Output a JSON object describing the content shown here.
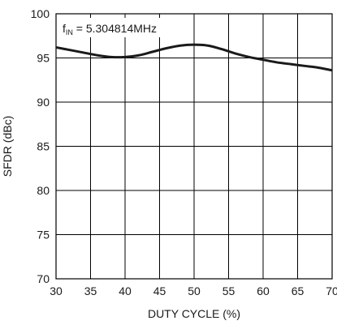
{
  "chart_data": {
    "type": "line",
    "title": "",
    "xlabel": "DUTY CYCLE (%)",
    "ylabel": "SFDR (dBc)",
    "xlim": [
      30,
      70
    ],
    "ylim": [
      70,
      100
    ],
    "xticks": [
      30,
      35,
      40,
      45,
      50,
      55,
      60,
      65,
      70
    ],
    "yticks": [
      70,
      75,
      80,
      85,
      90,
      95,
      100
    ],
    "grid": true,
    "annotation": {
      "text_main": "f",
      "text_sub": "IN",
      "text_rest": " = 5.304814MHz",
      "full_text": "fIN = 5.304814MHz"
    },
    "series": [
      {
        "x": [
          30,
          32,
          34,
          36,
          38,
          40,
          42,
          44,
          46,
          48,
          50,
          52,
          54,
          56,
          58,
          60,
          62,
          64,
          66,
          68,
          70
        ],
        "values": [
          96.2,
          95.9,
          95.6,
          95.3,
          95.1,
          95.1,
          95.3,
          95.7,
          96.1,
          96.4,
          96.5,
          96.4,
          96.0,
          95.5,
          95.1,
          94.8,
          94.5,
          94.3,
          94.1,
          93.9,
          93.6
        ]
      }
    ],
    "colors": {
      "line": "#1a1a1a",
      "grid": "#000000",
      "axis": "#000000"
    }
  }
}
